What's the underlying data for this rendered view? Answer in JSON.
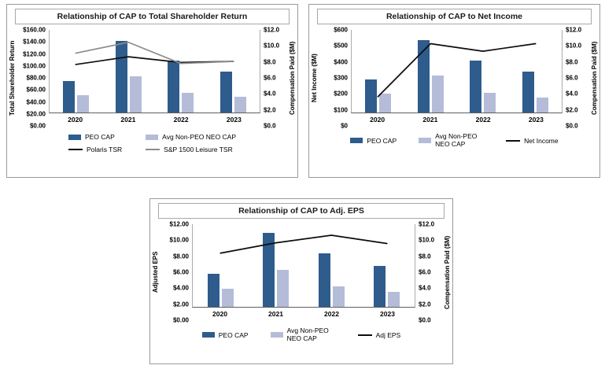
{
  "page": {
    "background": "#ffffff"
  },
  "colors": {
    "peo_cap": "#2e5c8c",
    "avg_non_peo": "#b4bcd8",
    "black_line": "#0d0d0d",
    "gray_line": "#8c8c8c",
    "panel_border": "#9a9a9a"
  },
  "chart_data": [
    {
      "type": "bar",
      "title": "Relationship of CAP to Total Shareholder Return",
      "categories": [
        "2020",
        "2021",
        "2022",
        "2023"
      ],
      "left_axis": {
        "label": "Total Shareholder Return",
        "max": 160,
        "ticks": [
          "$160.00",
          "$140.00",
          "$120.00",
          "$100.00",
          "$80.00",
          "$60.00",
          "$40.00",
          "$20.00",
          "$0.00"
        ]
      },
      "right_axis": {
        "label": "Compensation Paid ($M)",
        "max": 12,
        "ticks": [
          "$12.0",
          "$10.0",
          "$8.0",
          "$6.0",
          "$4.0",
          "$2.0",
          "$0.0"
        ]
      },
      "bar_series": [
        {
          "name": "PEO CAP",
          "axis": "right",
          "color_key": "peo_cap",
          "values": [
            4.6,
            10.4,
            7.5,
            5.9
          ]
        },
        {
          "name": "Avg Non-PEO NEO CAP",
          "axis": "right",
          "color_key": "avg_non_peo",
          "values": [
            2.5,
            5.3,
            2.9,
            2.3
          ]
        }
      ],
      "line_series": [
        {
          "name": "Polaris TSR",
          "axis": "left",
          "color_key": "black_line",
          "values": [
            93,
            108,
            97,
            99
          ]
        },
        {
          "name": "S&P 1500 Leisure TSR",
          "axis": "left",
          "color_key": "gray_line",
          "values": [
            115,
            136,
            95,
            99
          ]
        }
      ],
      "legend_layout": "grid2",
      "legend": [
        {
          "label": "PEO CAP",
          "swatch": "bar",
          "color_key": "peo_cap",
          "wrap": false
        },
        {
          "label": "Avg Non-PEO NEO CAP",
          "swatch": "bar",
          "color_key": "avg_non_peo",
          "wrap": false
        },
        {
          "label": "Polaris TSR",
          "swatch": "line",
          "color_key": "black_line",
          "wrap": false
        },
        {
          "label": "S&P 1500 Leisure TSR",
          "swatch": "line",
          "color_key": "gray_line",
          "wrap": false
        }
      ]
    },
    {
      "type": "bar",
      "title": "Relationship of CAP to Net Income",
      "categories": [
        "2020",
        "2021",
        "2022",
        "2023"
      ],
      "left_axis": {
        "label": "Net Income ($M)",
        "max": 600,
        "ticks": [
          "$600",
          "$500",
          "$400",
          "$300",
          "$200",
          "$100",
          "$0"
        ]
      },
      "right_axis": {
        "label": "Compensation Paid ($M)",
        "max": 12,
        "ticks": [
          "$12.0",
          "$10.0",
          "$8.0",
          "$6.0",
          "$4.0",
          "$2.0",
          "$0.0"
        ]
      },
      "bar_series": [
        {
          "name": "PEO CAP",
          "axis": "right",
          "color_key": "peo_cap",
          "values": [
            4.8,
            10.5,
            7.6,
            6.0
          ]
        },
        {
          "name": "Avg Non-PEO NEO CAP",
          "axis": "right",
          "color_key": "avg_non_peo",
          "values": [
            2.7,
            5.4,
            2.9,
            2.2
          ]
        }
      ],
      "line_series": [
        {
          "name": "Net Income",
          "axis": "left",
          "color_key": "black_line",
          "values": [
            115,
            500,
            445,
            500
          ]
        }
      ],
      "legend_layout": "row",
      "legend": [
        {
          "label": "PEO CAP",
          "swatch": "bar",
          "color_key": "peo_cap",
          "wrap": false
        },
        {
          "label": "Avg Non-PEO NEO CAP",
          "swatch": "bar",
          "color_key": "avg_non_peo",
          "wrap": true
        },
        {
          "label": "Net Income",
          "swatch": "line",
          "color_key": "black_line",
          "wrap": false
        }
      ]
    },
    {
      "type": "bar",
      "title": "Relationship of CAP to Adj. EPS",
      "categories": [
        "2020",
        "2021",
        "2022",
        "2023"
      ],
      "left_axis": {
        "label": "Adjusted EPS",
        "max": 12,
        "ticks": [
          "$12.00",
          "$10.00",
          "$8.00",
          "$6.00",
          "$4.00",
          "$2.00",
          "$0.00"
        ]
      },
      "right_axis": {
        "label": "Compensation Paid ($M)",
        "max": 12,
        "ticks": [
          "$12.0",
          "$10.0",
          "$8.0",
          "$6.0",
          "$4.0",
          "$2.0",
          "$0.0"
        ]
      },
      "bar_series": [
        {
          "name": "PEO CAP",
          "axis": "right",
          "color_key": "peo_cap",
          "values": [
            4.8,
            10.8,
            7.8,
            6.0
          ]
        },
        {
          "name": "Avg Non-PEO NEO CAP",
          "axis": "right",
          "color_key": "avg_non_peo",
          "values": [
            2.6,
            5.4,
            3.0,
            2.2
          ]
        }
      ],
      "line_series": [
        {
          "name": "Adj EPS",
          "axis": "left",
          "color_key": "black_line",
          "values": [
            7.8,
            9.3,
            10.4,
            9.2
          ]
        }
      ],
      "legend_layout": "row",
      "legend": [
        {
          "label": "PEO CAP",
          "swatch": "bar",
          "color_key": "peo_cap",
          "wrap": false
        },
        {
          "label": "Avg Non-PEO NEO CAP",
          "swatch": "bar",
          "color_key": "avg_non_peo",
          "wrap": true
        },
        {
          "label": "Adj EPS",
          "swatch": "line",
          "color_key": "black_line",
          "wrap": false
        }
      ]
    }
  ]
}
